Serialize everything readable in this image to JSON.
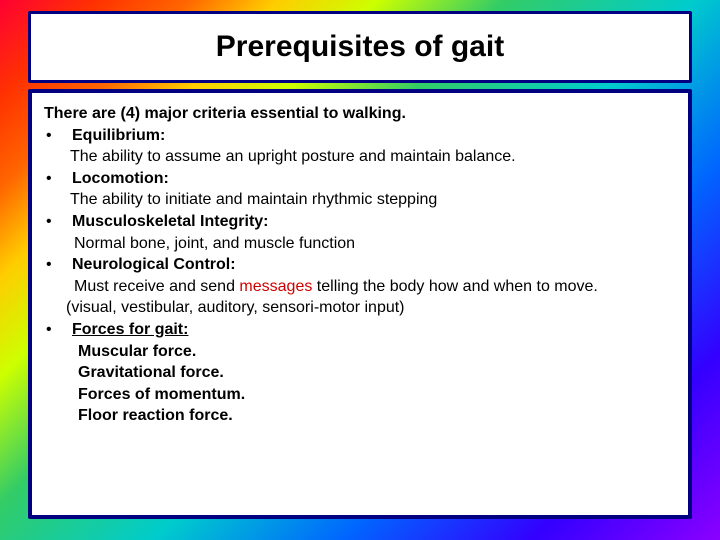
{
  "colors": {
    "border": "#000080",
    "box_bg": "#ffffff",
    "text": "#000000",
    "highlight": "#d10000",
    "gradient": [
      "#ff0033",
      "#ff3300",
      "#ff6600",
      "#ffcc00",
      "#ccff00",
      "#33cc66",
      "#00cccc",
      "#0066ff",
      "#3300ff",
      "#8b00ff"
    ]
  },
  "typography": {
    "title_fontsize": 30,
    "body_fontsize": 16,
    "font_family": "Arial"
  },
  "title": "Prerequisites of gait",
  "intro": "There are (4) major criteria essential to walking.",
  "items": [
    {
      "heading": "Equilibrium",
      "heading_suffix": ":",
      "heading_underline": false,
      "desc": "The ability to assume an upright posture and maintain balance.",
      "desc_indent": "desc"
    },
    {
      "heading": "Locomotion",
      "heading_suffix": ":",
      "heading_underline": false,
      "desc": "The ability to initiate and maintain rhythmic stepping",
      "desc_indent": "desc"
    },
    {
      "heading": "Musculoskeletal Integrity:",
      "heading_suffix": "",
      "heading_underline": false,
      "desc": "Normal bone, joint, and muscle function",
      "desc_indent": "desc2"
    },
    {
      "heading": "Neurological Control",
      "heading_suffix": ":",
      "heading_underline": false,
      "desc_prefix": "Must receive and send ",
      "desc_highlight": "messages",
      "desc_suffix": " telling the body how and when to move.",
      "paren": "(visual, vestibular, auditory, sensori-motor input)",
      "desc_indent": "desc2"
    },
    {
      "heading": "Forces for gait:",
      "heading_suffix": "",
      "heading_underline": true,
      "forces": [
        "Muscular force.",
        "Gravitational force.",
        "Forces of momentum.",
        "Floor reaction force."
      ]
    }
  ]
}
